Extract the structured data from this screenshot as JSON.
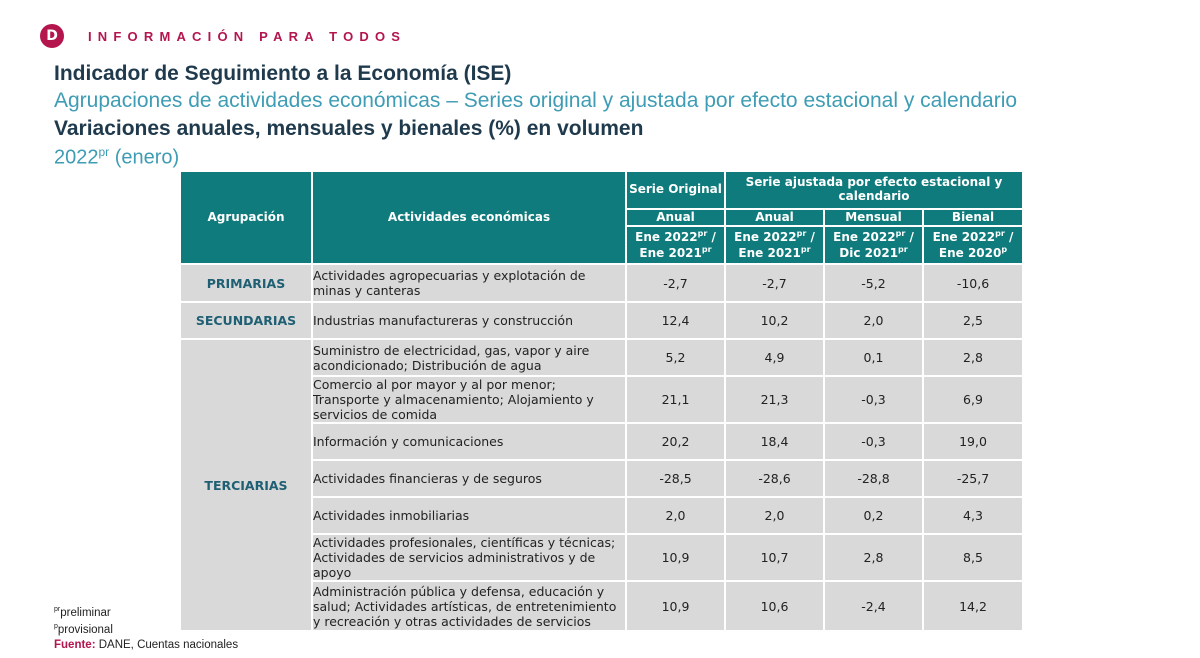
{
  "header": {
    "logo_letter": "D",
    "brand": "INFORMACIÓN PARA TODOS"
  },
  "titles": {
    "main": "Indicador de Seguimiento a la Economía (ISE)",
    "subtitle": "Agrupaciones de actividades económicas – Series original y ajustada por efecto estacional y calendario",
    "variations": "Variaciones anuales, mensuales y bienales (%) en volumen",
    "year": "2022",
    "year_sup": "pr",
    "period": "(enero)"
  },
  "table": {
    "col_agrupacion": "Agrupación",
    "col_actividades": "Actividades económicas",
    "col_serie_original": "Serie Original",
    "col_serie_ajustada": "Serie ajustada por efecto estacional y calendario",
    "sub_anual_1": "Anual",
    "sub_anual_2": "Anual",
    "sub_mensual": "Mensual",
    "sub_bienal": "Bienal",
    "p1": {
      "a": "Ene 2022",
      "a_sup": "pr",
      "sep": " /",
      "b": "Ene 2021",
      "b_sup": "pr"
    },
    "p2": {
      "a": "Ene 2022",
      "a_sup": "pr",
      "sep": " /",
      "b": "Ene 2021",
      "b_sup": "pr"
    },
    "p3": {
      "a": "Ene 2022",
      "a_sup": "pr",
      "sep": " /",
      "b": "Dic 2021",
      "b_sup": "pr"
    },
    "p4": {
      "a": "Ene 2022",
      "a_sup": "pr",
      "sep": " /",
      "b": "Ene 2020",
      "b_sup": "p"
    },
    "groups": {
      "primarias": "PRIMARIAS",
      "secundarias": "SECUNDARIAS",
      "terciarias": "TERCIARIAS"
    },
    "rows": [
      {
        "activity": "Actividades agropecuarias y explotación de minas y canteras",
        "orig_anual": "-2,7",
        "aj_anual": "-2,7",
        "aj_mensual": "-5,2",
        "aj_bienal": "-10,6"
      },
      {
        "activity": "Industrias manufactureras y construcción",
        "orig_anual": "12,4",
        "aj_anual": "10,2",
        "aj_mensual": "2,0",
        "aj_bienal": "2,5"
      },
      {
        "activity": "Suministro de electricidad, gas, vapor y aire acondicionado; Distribución de agua",
        "orig_anual": "5,2",
        "aj_anual": "4,9",
        "aj_mensual": "0,1",
        "aj_bienal": "2,8"
      },
      {
        "activity": "Comercio al por mayor y al por menor; Transporte y almacenamiento; Alojamiento y servicios de comida",
        "orig_anual": "21,1",
        "aj_anual": "21,3",
        "aj_mensual": "-0,3",
        "aj_bienal": "6,9"
      },
      {
        "activity": "Información y comunicaciones",
        "orig_anual": "20,2",
        "aj_anual": "18,4",
        "aj_mensual": "-0,3",
        "aj_bienal": "19,0"
      },
      {
        "activity": "Actividades financieras y de seguros",
        "orig_anual": "-28,5",
        "aj_anual": "-28,6",
        "aj_mensual": "-28,8",
        "aj_bienal": "-25,7"
      },
      {
        "activity": "Actividades inmobiliarias",
        "orig_anual": "2,0",
        "aj_anual": "2,0",
        "aj_mensual": "0,2",
        "aj_bienal": "4,3"
      },
      {
        "activity": "Actividades profesionales, científicas y técnicas; Actividades de servicios administrativos y de apoyo",
        "orig_anual": "10,9",
        "aj_anual": "10,7",
        "aj_mensual": "2,8",
        "aj_bienal": "8,5"
      },
      {
        "activity": "Administración pública y defensa, educación y salud;  Actividades artísticas, de entretenimiento y recreación y otras actividades de servicios",
        "orig_anual": "10,9",
        "aj_anual": "10,6",
        "aj_mensual": "-2,4",
        "aj_bienal": "14,2"
      }
    ]
  },
  "footnotes": {
    "pr_sup": "pr",
    "pr_text": "preliminar",
    "p_sup": "p",
    "p_text": "provisional",
    "fuente_label": "Fuente:",
    "fuente_text": " DANE, Cuentas nacionales"
  }
}
